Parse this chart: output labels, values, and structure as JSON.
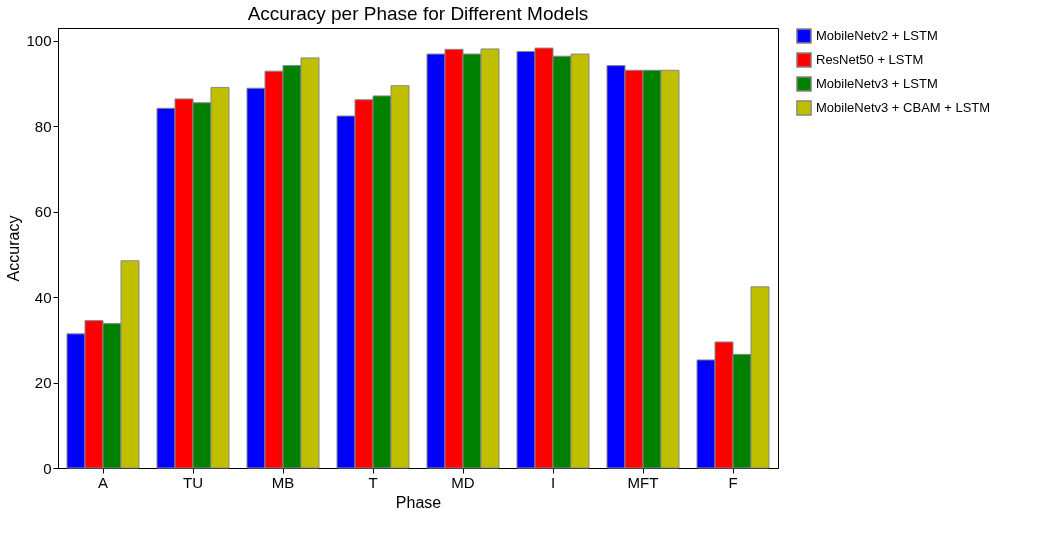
{
  "chart_data": {
    "type": "bar",
    "title": "Accuracy per Phase for Different Models",
    "xlabel": "Phase",
    "ylabel": "Accuracy",
    "categories": [
      "A",
      "TU",
      "MB",
      "T",
      "MD",
      "I",
      "MFT",
      "F"
    ],
    "series": [
      {
        "name": "MobileNetv2 + LSTM",
        "color": "#0000ff",
        "values": [
          31.4,
          84.2,
          88.9,
          82.4,
          96.9,
          97.5,
          94.2,
          25.3
        ]
      },
      {
        "name": "ResNet50 + LSTM",
        "color": "#ff0000",
        "values": [
          34.5,
          86.4,
          92.9,
          86.2,
          98.0,
          98.3,
          93.1,
          29.5
        ]
      },
      {
        "name": "MobileNetv3 + LSTM",
        "color": "#008000",
        "values": [
          33.8,
          85.5,
          94.2,
          87.1,
          96.9,
          96.4,
          93.1,
          26.6
        ]
      },
      {
        "name": "MobileNetv3 + CBAM + LSTM",
        "color": "#bfbf00",
        "values": [
          48.5,
          89.1,
          96.0,
          89.5,
          98.1,
          96.9,
          93.1,
          42.4
        ]
      }
    ],
    "ylim": [
      0,
      103
    ],
    "yticks": [
      0,
      20,
      40,
      60,
      80,
      100
    ],
    "grid": false,
    "legend": "right"
  }
}
